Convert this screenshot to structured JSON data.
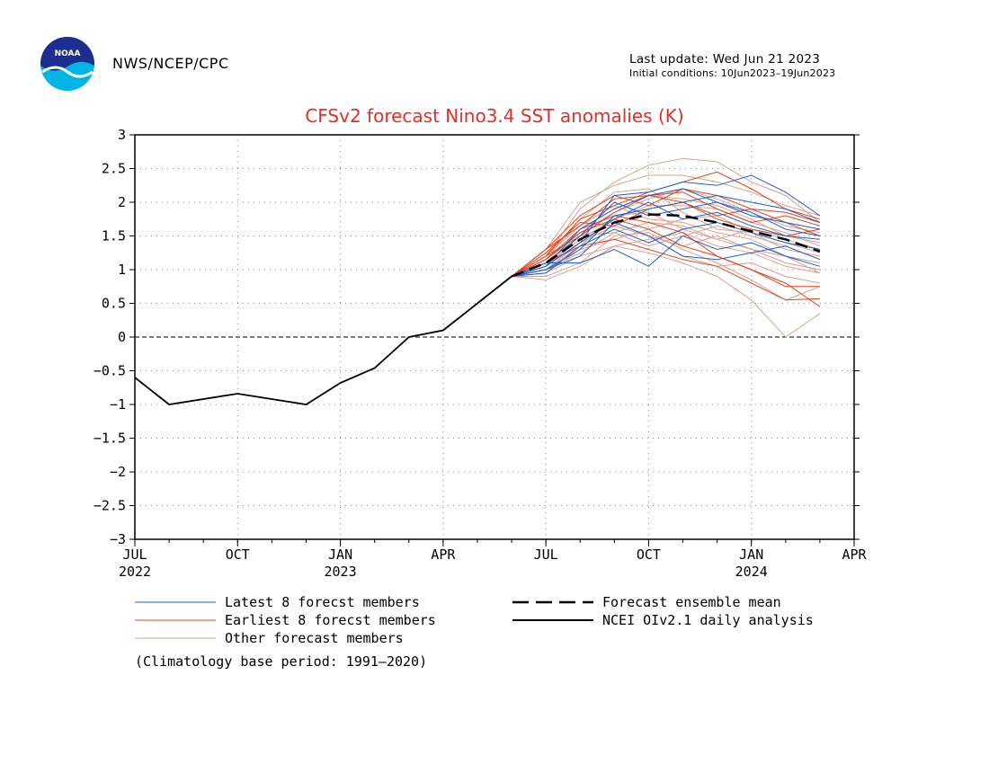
{
  "header": {
    "agency": "NWS/NCEP/CPC",
    "last_update": "Last update: Wed Jun 21 2023",
    "initial_conditions": "Initial conditions: 10Jun2023–19Jun2023",
    "logo_text": "NOAA"
  },
  "colors": {
    "latest": "#1f5fd0",
    "earliest": "#e0441c",
    "other": "#d9a08f",
    "mean": "#000000",
    "observed": "#000000",
    "title": "#e0302a"
  },
  "chart_data": {
    "type": "line",
    "title": "CFSv2 forecast Nino3.4 SST anomalies (K)",
    "ylim": [
      -3,
      3
    ],
    "yticks": [
      "3",
      "2.5",
      "2",
      "1.5",
      "1",
      "0.5",
      "0",
      "−0.5",
      "−1",
      "−1.5",
      "−2",
      "−2.5",
      "−3"
    ],
    "xlim": [
      "2022-07",
      "2024-04"
    ],
    "xticks": [
      {
        "label": "JUL",
        "year": "2022",
        "pos": 0
      },
      {
        "label": "OCT",
        "year": "",
        "pos": 3
      },
      {
        "label": "JAN",
        "year": "2023",
        "pos": 6
      },
      {
        "label": "APR",
        "year": "",
        "pos": 9
      },
      {
        "label": "JUL",
        "year": "",
        "pos": 12
      },
      {
        "label": "OCT",
        "year": "",
        "pos": 15
      },
      {
        "label": "JAN",
        "year": "2024",
        "pos": 18
      },
      {
        "label": "APR",
        "year": "",
        "pos": 21
      }
    ],
    "grid": true,
    "observed": {
      "name": "NCEI OIv2.1 daily analysis",
      "x": [
        0,
        1,
        3,
        5,
        6,
        7,
        8,
        9,
        10,
        11
      ],
      "y": [
        -0.6,
        -1.0,
        -0.84,
        -1.0,
        -0.68,
        -0.46,
        0.0,
        0.1,
        0.5,
        0.9
      ]
    },
    "ensemble_mean": {
      "name": "Forecast ensemble mean",
      "x": [
        11,
        12,
        13,
        14,
        15,
        16,
        17,
        18,
        19,
        20
      ],
      "y": [
        0.9,
        1.1,
        1.45,
        1.7,
        1.82,
        1.8,
        1.7,
        1.57,
        1.45,
        1.27
      ]
    },
    "forecast_x": [
      11,
      12,
      13,
      14,
      15,
      16,
      17,
      18,
      19,
      20
    ],
    "latest_members": [
      [
        0.9,
        1.05,
        1.4,
        2.1,
        2.15,
        2.3,
        2.25,
        2.4,
        2.15,
        1.8
      ],
      [
        0.9,
        1.0,
        1.3,
        1.8,
        1.9,
        2.0,
        2.1,
        2.0,
        1.9,
        1.7
      ],
      [
        0.9,
        1.1,
        1.1,
        1.3,
        1.05,
        1.5,
        1.3,
        1.4,
        1.2,
        1.05
      ],
      [
        0.9,
        1.05,
        1.6,
        1.9,
        2.1,
        2.2,
        2.0,
        1.8,
        1.7,
        1.6
      ],
      [
        0.9,
        1.0,
        1.2,
        1.7,
        1.5,
        1.2,
        1.15,
        1.25,
        1.35,
        1.15
      ],
      [
        0.9,
        1.1,
        1.5,
        2.0,
        1.8,
        1.9,
        2.0,
        1.85,
        1.6,
        1.5
      ],
      [
        0.9,
        0.95,
        1.35,
        1.6,
        1.4,
        1.6,
        1.7,
        1.55,
        1.4,
        1.3
      ],
      [
        0.9,
        1.05,
        1.4,
        1.75,
        2.0,
        1.75,
        1.85,
        1.65,
        1.5,
        1.45
      ]
    ],
    "earliest_members": [
      [
        0.9,
        1.2,
        1.75,
        1.95,
        2.15,
        2.3,
        2.45,
        2.2,
        1.9,
        1.75
      ],
      [
        0.9,
        1.3,
        1.65,
        2.05,
        2.1,
        2.15,
        1.9,
        1.7,
        1.8,
        1.65
      ],
      [
        0.9,
        1.15,
        1.55,
        1.75,
        1.6,
        1.35,
        1.2,
        1.0,
        0.75,
        0.75
      ],
      [
        0.9,
        1.25,
        1.7,
        1.65,
        1.9,
        2.0,
        1.75,
        1.6,
        1.5,
        1.6
      ],
      [
        0.9,
        1.1,
        1.35,
        1.45,
        1.3,
        1.15,
        1.05,
        0.8,
        0.55,
        0.57
      ],
      [
        0.9,
        1.3,
        1.8,
        2.1,
        1.95,
        2.2,
        2.1,
        1.9,
        1.85,
        1.7
      ],
      [
        0.9,
        1.15,
        1.6,
        1.8,
        1.7,
        1.55,
        1.2,
        1.0,
        0.8,
        0.45
      ],
      [
        0.9,
        1.2,
        1.5,
        1.85,
        2.1,
        2.0,
        1.8,
        1.9,
        1.7,
        1.5
      ]
    ],
    "other_members": [
      [
        0.9,
        1.2,
        1.9,
        2.3,
        2.55,
        2.65,
        2.6,
        2.3,
        2.1,
        1.7
      ],
      [
        0.9,
        1.3,
        2.0,
        2.25,
        2.4,
        2.4,
        2.3,
        2.15,
        1.95,
        1.8
      ],
      [
        0.9,
        0.85,
        1.05,
        1.35,
        1.25,
        1.1,
        0.9,
        0.55,
        0.0,
        0.35
      ],
      [
        0.9,
        0.9,
        1.1,
        1.5,
        1.55,
        1.3,
        1.1,
        0.85,
        0.55,
        0.75
      ],
      [
        0.9,
        1.0,
        1.4,
        1.65,
        1.5,
        1.35,
        1.5,
        1.3,
        1.1,
        1.0
      ],
      [
        0.9,
        1.1,
        1.6,
        1.9,
        2.1,
        2.05,
        1.95,
        1.75,
        1.5,
        1.4
      ],
      [
        0.9,
        1.0,
        1.25,
        1.55,
        1.7,
        1.65,
        1.45,
        1.3,
        1.2,
        1.1
      ],
      [
        0.9,
        1.15,
        1.75,
        2.15,
        2.2,
        1.85,
        1.6,
        1.55,
        1.4,
        1.25
      ],
      [
        0.9,
        1.05,
        1.45,
        1.75,
        1.95,
        1.95,
        1.9,
        1.7,
        1.55,
        1.35
      ],
      [
        0.9,
        0.95,
        1.3,
        1.45,
        1.6,
        1.75,
        1.8,
        1.55,
        1.3,
        1.2
      ],
      [
        0.9,
        1.1,
        1.5,
        1.55,
        1.35,
        1.5,
        1.65,
        1.5,
        1.35,
        1.15
      ],
      [
        0.9,
        1.0,
        1.35,
        1.8,
        1.85,
        1.6,
        1.45,
        1.6,
        1.45,
        1.3
      ],
      [
        0.9,
        1.2,
        1.65,
        1.95,
        1.75,
        1.7,
        1.55,
        1.45,
        1.2,
        0.95
      ],
      [
        0.9,
        1.05,
        1.5,
        1.65,
        1.5,
        1.2,
        1.05,
        1.1,
        0.9,
        0.8
      ],
      [
        0.9,
        1.15,
        1.55,
        1.85,
        2.05,
        2.2,
        2.05,
        1.85,
        1.65,
        1.55
      ],
      [
        0.9,
        0.95,
        1.2,
        1.35,
        1.45,
        1.55,
        1.35,
        1.25,
        1.05,
        0.95
      ]
    ],
    "legend": {
      "latest": "Latest 8 forecst members",
      "earliest": "Earliest 8 forecst members",
      "other": "Other forecast members",
      "mean": "Forecast ensemble mean",
      "observed": "NCEI OIv2.1 daily analysis",
      "footnote": "(Climatology base period: 1991—2020)"
    }
  }
}
